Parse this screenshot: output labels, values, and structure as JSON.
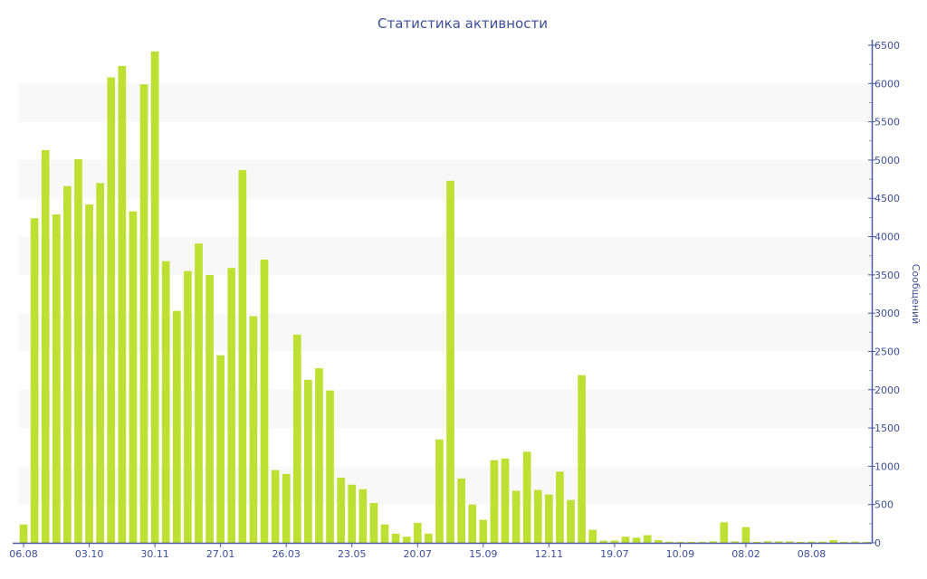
{
  "chart_data": {
    "type": "bar",
    "title": "Статистика активности",
    "xlabel": "",
    "ylabel": "Сообщений",
    "ylim": [
      0,
      6500
    ],
    "y_ticks": [
      0,
      500,
      1000,
      1500,
      2000,
      2500,
      3000,
      3500,
      4000,
      4500,
      5000,
      5500,
      6000,
      6500
    ],
    "y_axis_side": "right",
    "grid": "alternating horizontal bands",
    "legend": "none",
    "x_tick_labels": [
      {
        "index": 0,
        "label": "06.08"
      },
      {
        "index": 6,
        "label": "03.10"
      },
      {
        "index": 12,
        "label": "30.11"
      },
      {
        "index": 18,
        "label": "27.01"
      },
      {
        "index": 24,
        "label": "26.03"
      },
      {
        "index": 30,
        "label": "23.05"
      },
      {
        "index": 36,
        "label": "20.07"
      },
      {
        "index": 42,
        "label": "15.09"
      },
      {
        "index": 48,
        "label": "12.11"
      },
      {
        "index": 54,
        "label": "19.07"
      },
      {
        "index": 60,
        "label": "10.09"
      },
      {
        "index": 66,
        "label": "08.02"
      },
      {
        "index": 72,
        "label": "08.08"
      }
    ],
    "series": [
      {
        "name": "Сообщений",
        "color": "#bde032",
        "values": [
          240,
          4240,
          5130,
          4290,
          4660,
          5010,
          4420,
          4700,
          6080,
          6230,
          4330,
          5990,
          6420,
          3680,
          3030,
          3550,
          3910,
          3500,
          2450,
          3590,
          4870,
          2960,
          3700,
          950,
          900,
          2720,
          2130,
          2280,
          1990,
          850,
          760,
          700,
          520,
          240,
          120,
          80,
          260,
          120,
          1350,
          4730,
          840,
          500,
          300,
          1080,
          1100,
          680,
          1190,
          690,
          630,
          930,
          560,
          2190,
          170,
          28,
          30,
          80,
          67,
          100,
          35,
          15,
          12,
          12,
          12,
          20,
          268,
          18,
          205,
          12,
          20,
          18,
          18,
          12,
          15,
          15,
          35,
          12,
          15,
          12
        ]
      }
    ]
  },
  "colors": {
    "axis": "#4a5aa0",
    "band": "#f8f8f8",
    "bar": "#bde032"
  }
}
